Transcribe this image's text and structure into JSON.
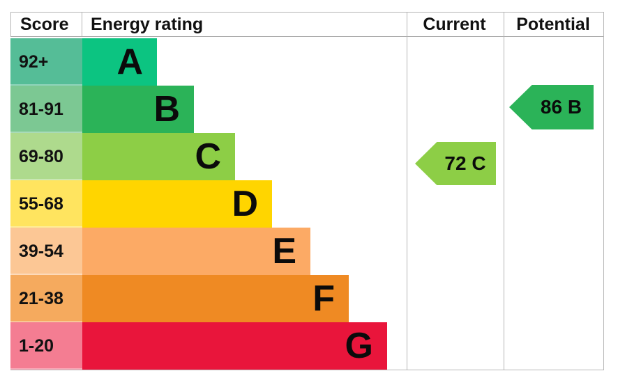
{
  "chart_data": {
    "type": "bar",
    "columns": [
      "Score",
      "Energy rating",
      "Current",
      "Potential"
    ],
    "bands": [
      {
        "letter": "A",
        "score_range": "92+",
        "color": "#0cc481",
        "score_tint": "#55bd97"
      },
      {
        "letter": "B",
        "score_range": "81-91",
        "color": "#2bb358",
        "score_tint": "#7cc893"
      },
      {
        "letter": "C",
        "score_range": "69-80",
        "color": "#8dce46",
        "score_tint": "#aeda8d"
      },
      {
        "letter": "D",
        "score_range": "55-68",
        "color": "#ffd500",
        "score_tint": "#ffe45f"
      },
      {
        "letter": "E",
        "score_range": "39-54",
        "color": "#fcaa65",
        "score_tint": "#fcc795"
      },
      {
        "letter": "F",
        "score_range": "21-38",
        "color": "#ef8a23",
        "score_tint": "#f5aa5e"
      },
      {
        "letter": "G",
        "score_range": "1-20",
        "color": "#e9153b",
        "score_tint": "#f47d92"
      }
    ],
    "current": {
      "score": 72,
      "band": "C",
      "label": "72 C",
      "color": "#8dce46"
    },
    "potential": {
      "score": 86,
      "band": "B",
      "label": "86 B",
      "color": "#2bb358"
    },
    "border_color": "#b5b5b5"
  }
}
